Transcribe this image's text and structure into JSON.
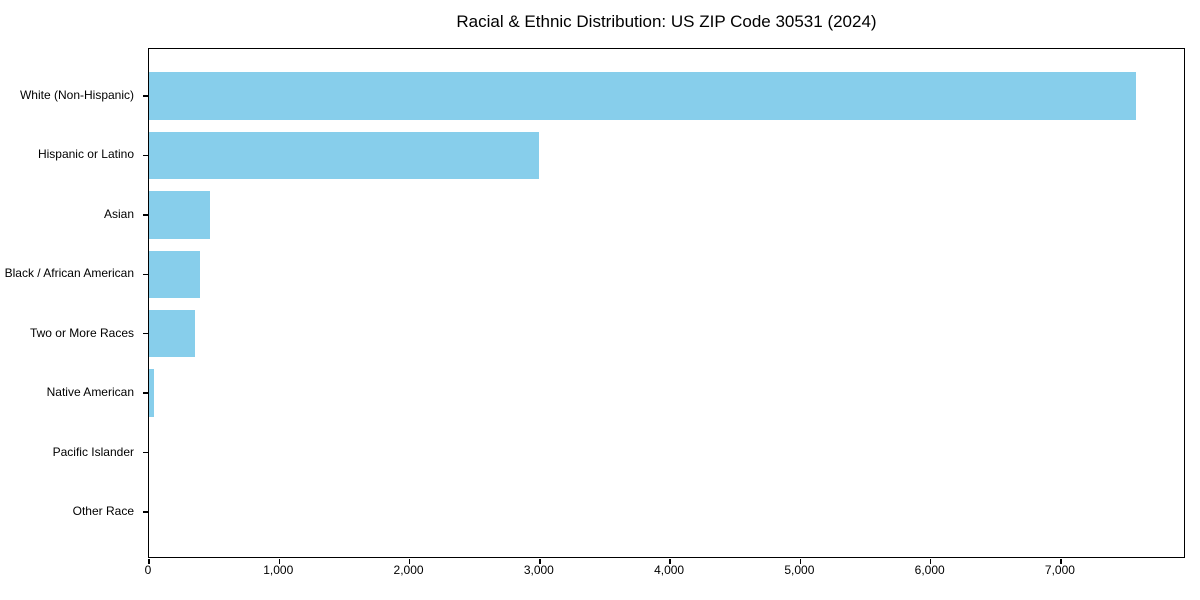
{
  "chart_data": {
    "type": "bar",
    "orientation": "horizontal",
    "title": "Racial & Ethnic Distribution: US ZIP Code 30531 (2024)",
    "xlabel": "",
    "ylabel": "",
    "categories": [
      "White (Non-Hispanic)",
      "Hispanic or Latino",
      "Asian",
      "Black / African American",
      "Two or More Races",
      "Native American",
      "Pacific Islander",
      "Other Race"
    ],
    "values": [
      7580,
      2990,
      465,
      395,
      350,
      35,
      0,
      0
    ],
    "xlim": [
      0,
      7960
    ],
    "x_ticks": [
      0,
      1000,
      2000,
      3000,
      4000,
      5000,
      6000,
      7000
    ],
    "x_tick_labels": [
      "0",
      "1,000",
      "2,000",
      "3,000",
      "4,000",
      "5,000",
      "6,000",
      "7,000"
    ],
    "bar_color": "#87CEEB",
    "grid": false,
    "legend": null
  },
  "colors": {
    "bar": "#87CEEB",
    "axis": "#000000",
    "text": "#000000",
    "background": "#ffffff"
  }
}
